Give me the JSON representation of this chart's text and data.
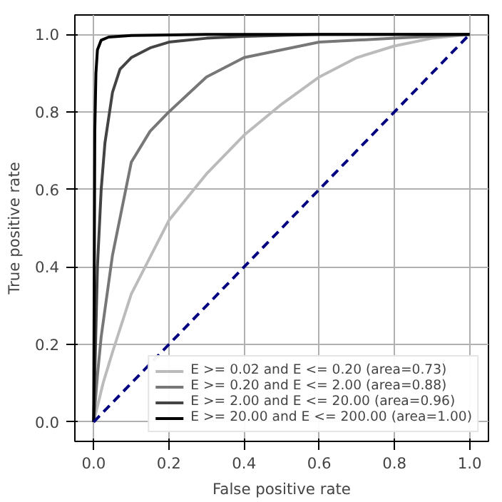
{
  "chart_data": {
    "type": "line",
    "xlabel": "False positive rate",
    "ylabel": "True positive rate",
    "xlim": [
      -0.05,
      1.05
    ],
    "ylim": [
      -0.05,
      1.05
    ],
    "xticks": [
      {
        "value": 0,
        "label": "0.0"
      },
      {
        "value": 0.2,
        "label": "0.2"
      },
      {
        "value": 0.4,
        "label": "0.4"
      },
      {
        "value": 0.6,
        "label": "0.6"
      },
      {
        "value": 0.8,
        "label": "0.8"
      },
      {
        "value": 1,
        "label": "1.0"
      }
    ],
    "yticks": [
      {
        "value": 0,
        "label": "0.0"
      },
      {
        "value": 0.2,
        "label": "0.2"
      },
      {
        "value": 0.4,
        "label": "0.4"
      },
      {
        "value": 0.6,
        "label": "0.6"
      },
      {
        "value": 0.8,
        "label": "0.8"
      },
      {
        "value": 1,
        "label": "1.0"
      }
    ],
    "grid": true,
    "legend": "bottom right",
    "line_style": "solid",
    "series": [
      {
        "name": "E >= 0.02 and E <= 0.20 (area=0.73)",
        "color": "#bbbbbb",
        "x": [
          0,
          0.025,
          0.05,
          0.1,
          0.2,
          0.3,
          0.4,
          0.5,
          0.6,
          0.7,
          0.8,
          0.9,
          1.0
        ],
        "values": [
          0,
          0.1,
          0.18,
          0.33,
          0.52,
          0.64,
          0.74,
          0.82,
          0.89,
          0.94,
          0.97,
          0.99,
          1.0
        ]
      },
      {
        "name": "E >= 0.20 and E <= 2.00 (area=0.88)",
        "color": "#777777",
        "x": [
          0,
          0.01,
          0.02,
          0.05,
          0.1,
          0.15,
          0.2,
          0.3,
          0.4,
          0.6,
          0.8,
          1.0
        ],
        "values": [
          0,
          0.12,
          0.22,
          0.43,
          0.67,
          0.75,
          0.8,
          0.89,
          0.94,
          0.98,
          0.99,
          1.0
        ]
      },
      {
        "name": "E >= 2.00 and E <= 20.00 (area=0.96)",
        "color": "#444444",
        "x": [
          0,
          0.01,
          0.02,
          0.03,
          0.05,
          0.07,
          0.1,
          0.15,
          0.2,
          0.3,
          0.4,
          0.6,
          1.0
        ],
        "values": [
          0,
          0.4,
          0.6,
          0.72,
          0.85,
          0.91,
          0.94,
          0.965,
          0.98,
          0.99,
          0.995,
          1.0,
          1.0
        ]
      },
      {
        "name": "E >= 20.00 and E <= 200.00 (area=1.00)",
        "color": "#000000",
        "x": [
          0,
          0.003,
          0.006,
          0.01,
          0.02,
          0.04,
          0.1,
          0.3,
          1.0
        ],
        "values": [
          0,
          0.75,
          0.9,
          0.96,
          0.985,
          0.993,
          0.997,
          1.0,
          1.0
        ]
      },
      {
        "color": "#000080",
        "line_style": "dashed",
        "x": [
          0,
          1
        ],
        "values": [
          0,
          1
        ]
      }
    ]
  }
}
